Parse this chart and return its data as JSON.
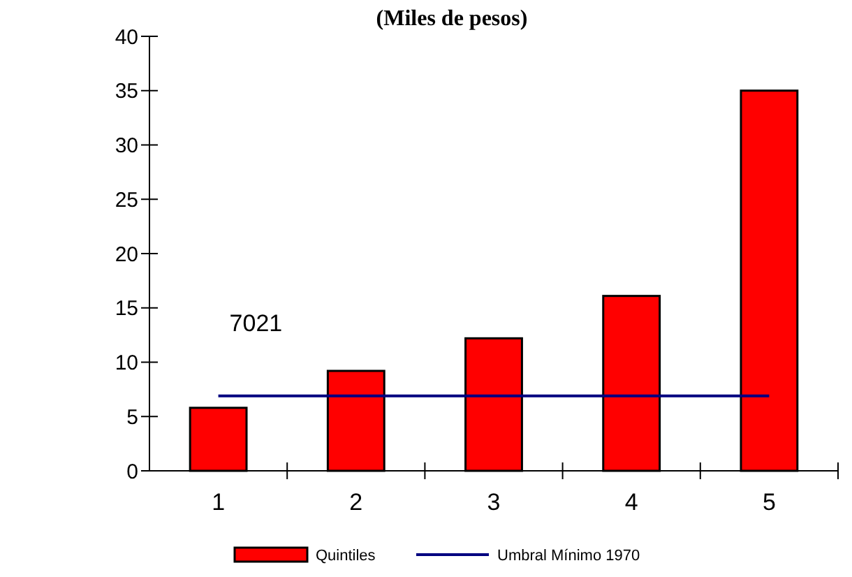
{
  "chart_data": {
    "type": "bar",
    "title": "(Miles de pesos)",
    "categories": [
      "1",
      "2",
      "3",
      "4",
      "5"
    ],
    "series": [
      {
        "name": "Quintiles",
        "color": "#ff0000",
        "values": [
          5.8,
          9.2,
          12.2,
          16.1,
          35
        ]
      },
      {
        "name": "Umbral Mínimo 1970",
        "type": "line",
        "color": "#000080",
        "values": [
          6.9,
          6.9,
          6.9,
          6.9,
          6.9
        ]
      }
    ],
    "ylim": [
      0,
      40
    ],
    "yticks": [
      0,
      5,
      10,
      15,
      20,
      25,
      30,
      35,
      40
    ],
    "grid": false,
    "legend": "bottom",
    "marker": "none",
    "annotations": [
      "7021"
    ]
  }
}
